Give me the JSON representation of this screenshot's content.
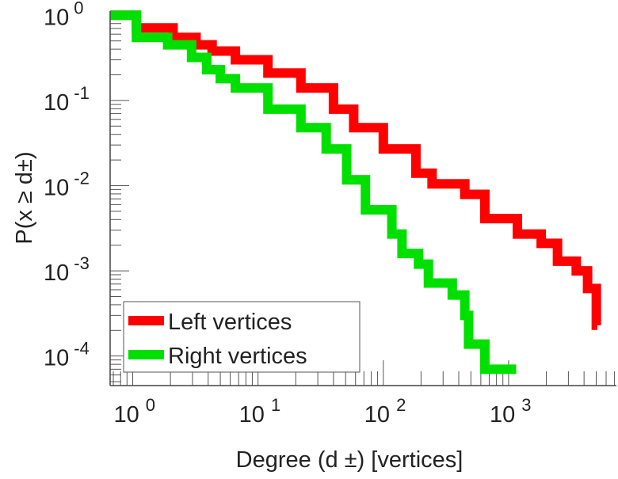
{
  "chart_data": {
    "type": "line",
    "title": "",
    "xlabel": "Degree (d ±) [vertices]",
    "ylabel": "P(x ≥ d±)",
    "xscale": "log",
    "yscale": "log",
    "xlim": [
      0.66,
      7250
    ],
    "ylim": [
      4.5e-05,
      1.12
    ],
    "grid": false,
    "legend_position": "bottom-left",
    "x_ticks": [
      {
        "base": "10",
        "exp": "0",
        "value": 1
      },
      {
        "base": "10",
        "exp": "1",
        "value": 10
      },
      {
        "base": "10",
        "exp": "2",
        "value": 100
      },
      {
        "base": "10",
        "exp": "3",
        "value": 1000
      }
    ],
    "y_ticks": [
      {
        "base": "10",
        "exp": "0",
        "value": 1
      },
      {
        "base": "10",
        "exp": "-1",
        "value": 0.1
      },
      {
        "base": "10",
        "exp": "-2",
        "value": 0.01
      },
      {
        "base": "10",
        "exp": "-3",
        "value": 0.001
      },
      {
        "base": "10",
        "exp": "-4",
        "value": 0.0001
      }
    ],
    "series": [
      {
        "name": "Left vertices",
        "color": "#ff0000",
        "steps": [
          [
            0.66,
            1
          ],
          [
            1.07,
            0.71
          ],
          [
            2.1,
            0.55
          ],
          [
            3.2,
            0.45
          ],
          [
            4.3,
            0.38
          ],
          [
            6.6,
            0.3
          ],
          [
            12,
            0.21
          ],
          [
            22,
            0.14
          ],
          [
            40,
            0.079
          ],
          [
            58,
            0.048
          ],
          [
            100,
            0.027
          ],
          [
            182,
            0.014
          ],
          [
            245,
            0.0105
          ],
          [
            447,
            0.0079
          ],
          [
            646,
            0.0041
          ],
          [
            1175,
            0.0027
          ],
          [
            1820,
            0.0021
          ],
          [
            2455,
            0.0013
          ],
          [
            3467,
            0.001
          ],
          [
            4266,
            0.00062
          ],
          [
            5012,
            0.00023
          ]
        ],
        "end": 5100
      },
      {
        "name": "Right vertices",
        "color": "#00e000",
        "steps": [
          [
            0.66,
            1
          ],
          [
            1.07,
            0.55
          ],
          [
            1.9,
            0.45
          ],
          [
            2.95,
            0.32
          ],
          [
            3.9,
            0.23
          ],
          [
            5,
            0.18
          ],
          [
            6.6,
            0.14
          ],
          [
            12,
            0.079
          ],
          [
            22,
            0.048
          ],
          [
            35,
            0.027
          ],
          [
            51,
            0.0117
          ],
          [
            72,
            0.0052
          ],
          [
            117,
            0.0027
          ],
          [
            141,
            0.0016
          ],
          [
            191,
            0.0012
          ],
          [
            229,
            0.00072
          ],
          [
            355,
            0.00052
          ],
          [
            447,
            0.0003
          ],
          [
            479,
            0.000138
          ],
          [
            646,
            7e-05
          ]
        ],
        "end": 1150
      }
    ]
  }
}
